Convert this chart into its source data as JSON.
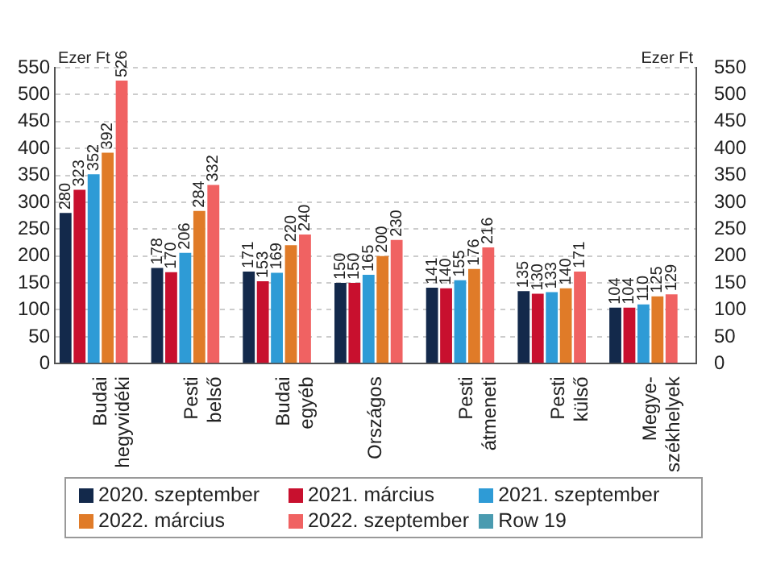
{
  "chart_data": {
    "type": "bar",
    "categories": [
      "Budai\nhegyvidéki",
      "Pesti\nbelső",
      "Budai\negyéb",
      "Országos",
      "Pesti\nátmeneti",
      "Pesti\nkülső",
      "Megye-\nszékhelyek"
    ],
    "series": [
      {
        "name": "2020. szeptember",
        "color": "#13294b",
        "values": [
          280,
          178,
          171,
          150,
          141,
          135,
          104
        ]
      },
      {
        "name": "2021. március",
        "color": "#c8102e",
        "values": [
          323,
          170,
          153,
          150,
          140,
          130,
          104
        ]
      },
      {
        "name": "2021. szeptember",
        "color": "#2e9bd6",
        "values": [
          352,
          206,
          169,
          165,
          155,
          133,
          110
        ]
      },
      {
        "name": "2022. március",
        "color": "#e07b28",
        "values": [
          392,
          284,
          220,
          200,
          176,
          140,
          125
        ]
      },
      {
        "name": "2022. szeptember",
        "color": "#f06262",
        "values": [
          526,
          332,
          240,
          230,
          216,
          171,
          129
        ]
      },
      {
        "name": "Row 19",
        "color": "#4a9bb0",
        "values": [
          null,
          null,
          null,
          null,
          null,
          null,
          null
        ]
      }
    ],
    "ylabel": "Ezer Ft",
    "y2label": "Ezer Ft",
    "ylim": [
      0,
      550
    ],
    "yticks": [
      0,
      50,
      100,
      150,
      200,
      250,
      300,
      350,
      400,
      450,
      500,
      550
    ],
    "y2lim": [
      0,
      550
    ],
    "y2ticks": [
      0,
      50,
      100,
      150,
      200,
      250,
      300,
      350,
      400,
      450,
      500,
      550
    ],
    "grid": "y",
    "legend": "bottom",
    "data_labels": true
  }
}
